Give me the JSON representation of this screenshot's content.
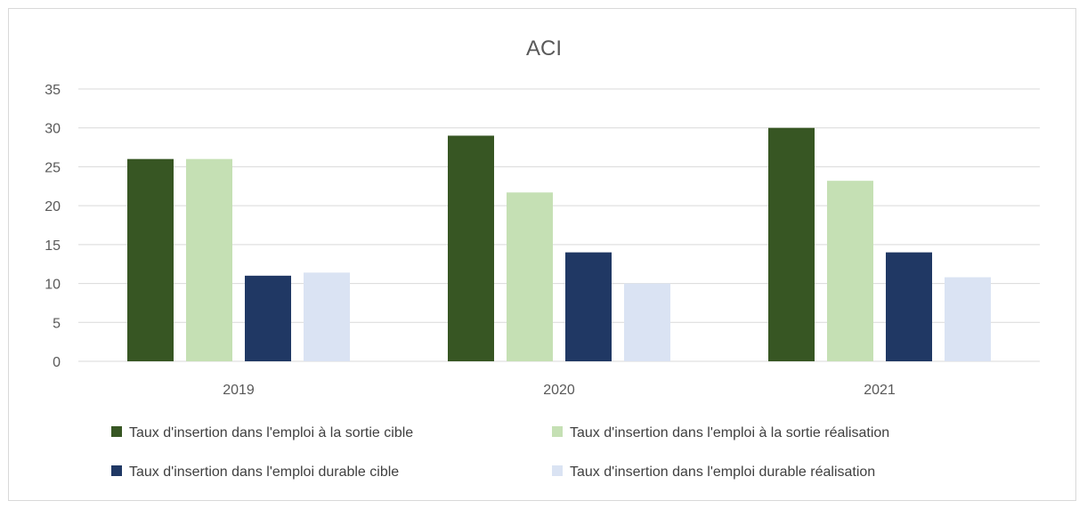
{
  "chart_data": {
    "type": "bar",
    "title": "ACI",
    "categories": [
      "2019",
      "2020",
      "2021"
    ],
    "ylim": [
      0,
      35
    ],
    "yticks": [
      0,
      5,
      10,
      15,
      20,
      25,
      30,
      35
    ],
    "grid": true,
    "legend_position": "bottom",
    "series": [
      {
        "name": "Taux d'insertion dans l'emploi à la sortie cible",
        "color": "#375623",
        "values": [
          26,
          29,
          30
        ]
      },
      {
        "name": "Taux d'insertion dans l'emploi à la sortie réalisation",
        "color": "#c5e0b4",
        "values": [
          26,
          21.7,
          23.2
        ]
      },
      {
        "name": "Taux d'insertion dans l'emploi durable cible",
        "color": "#203864",
        "values": [
          11,
          14,
          14
        ]
      },
      {
        "name": "Taux d'insertion dans l'emploi durable réalisation",
        "color": "#dae3f3",
        "values": [
          11.4,
          10,
          10.8
        ]
      }
    ]
  }
}
